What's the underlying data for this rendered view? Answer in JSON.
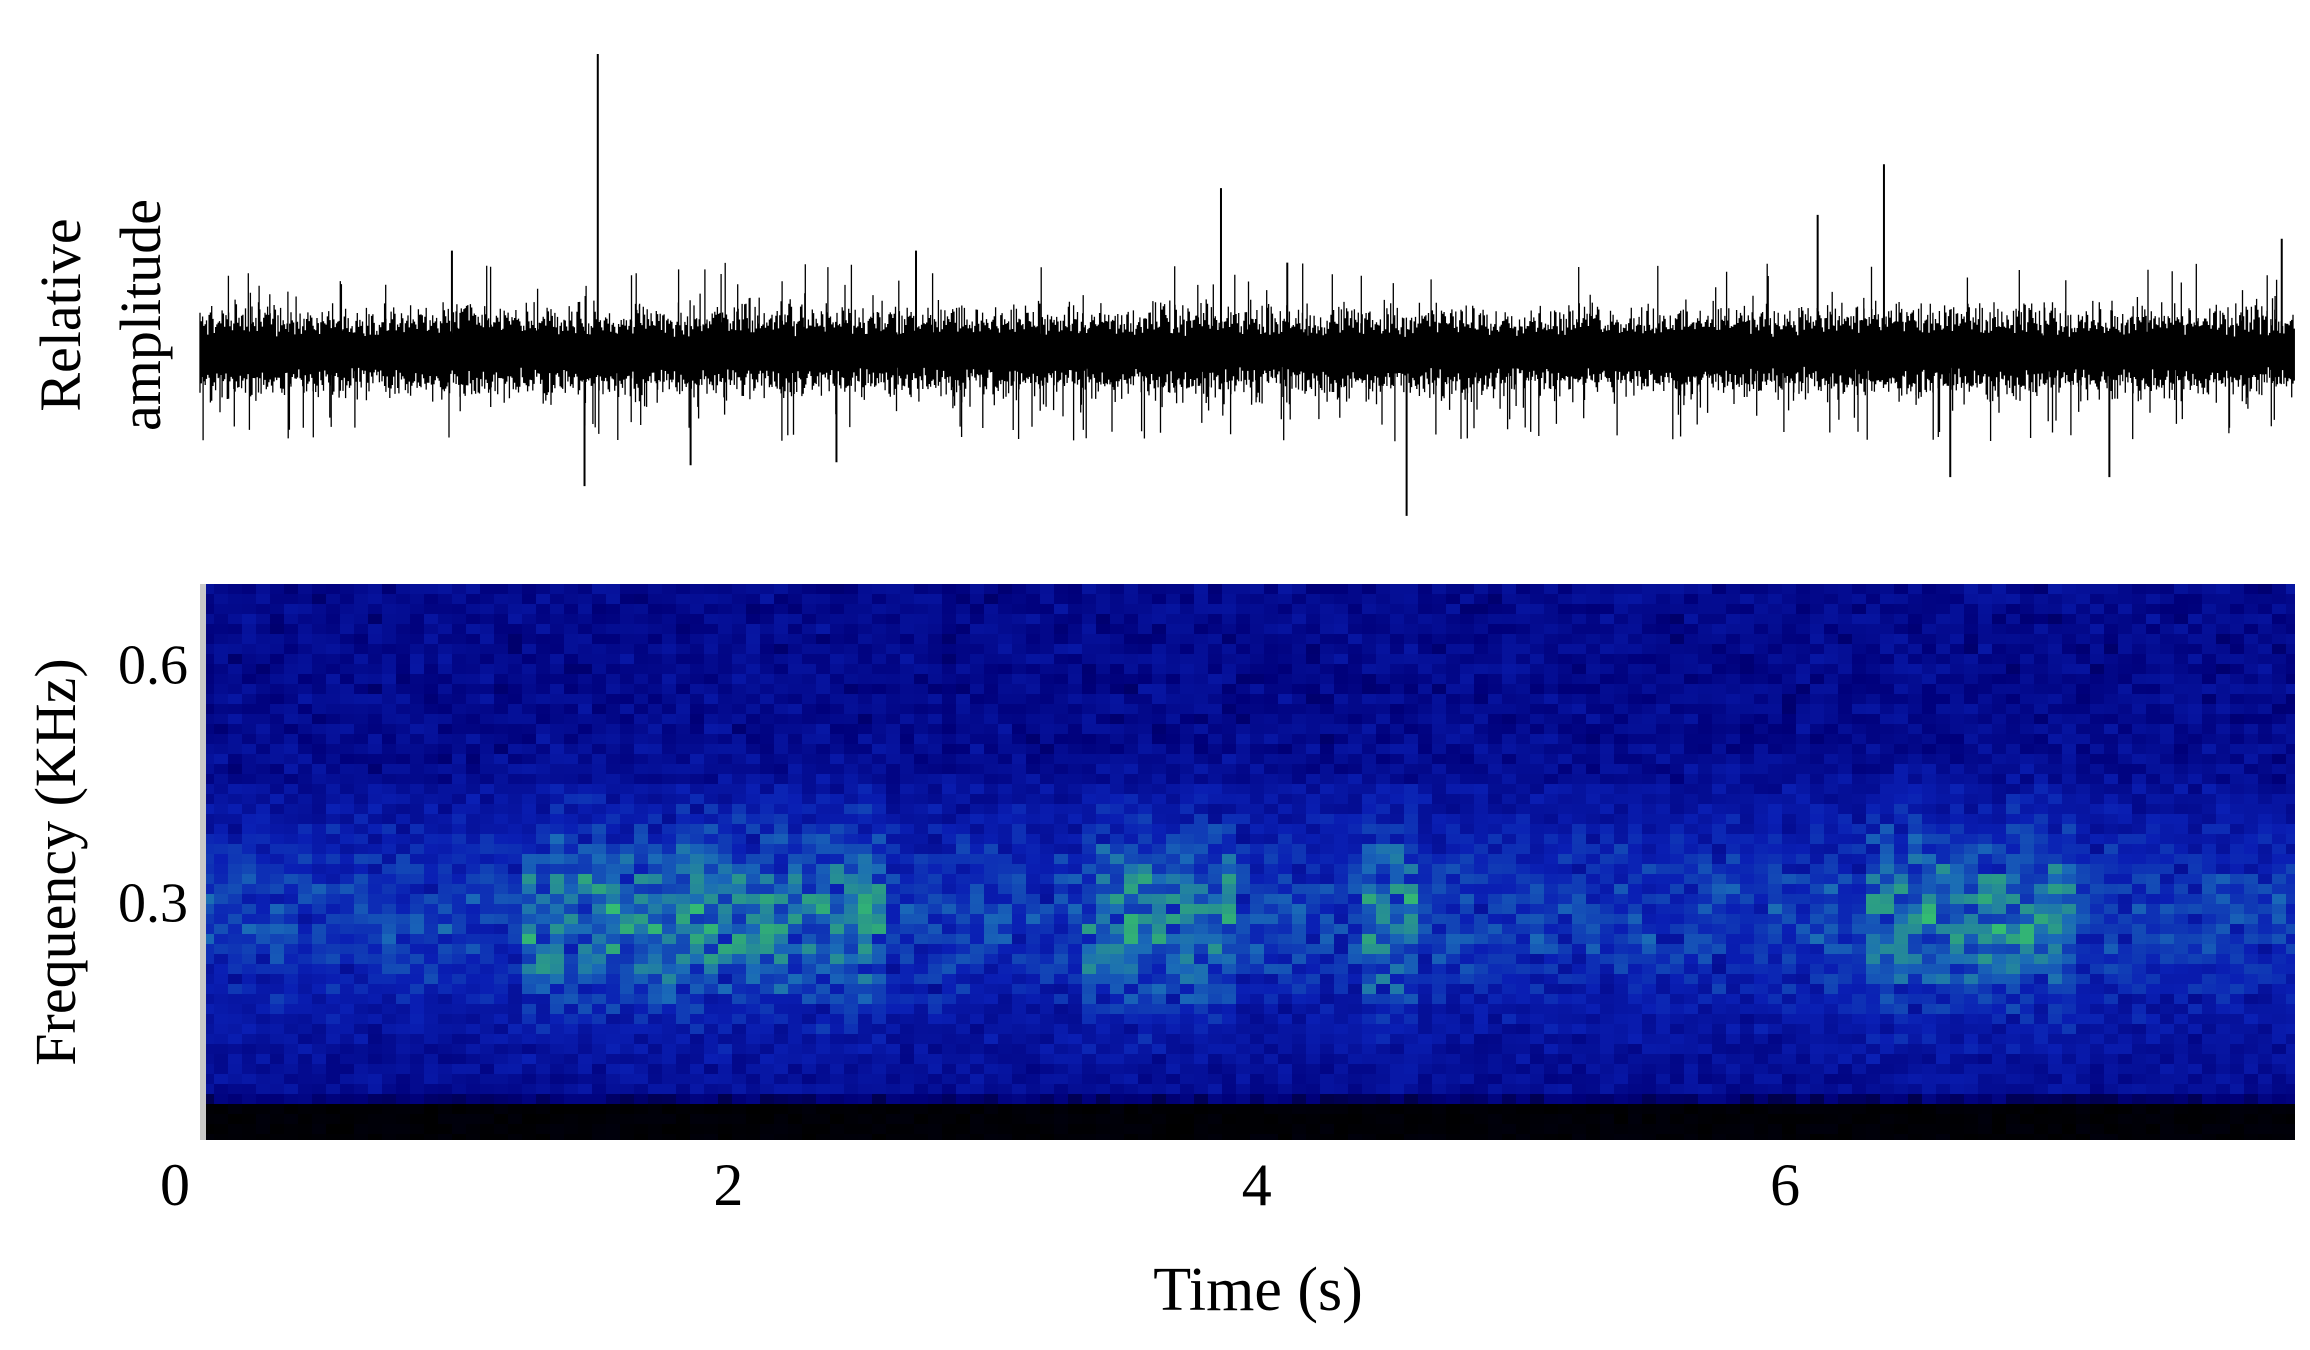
{
  "chart_data": [
    {
      "type": "line",
      "panel": "waveform",
      "ylabel": "Relative\namplitude",
      "ylabel_lines": [
        "Relative",
        "amplitude"
      ],
      "x_range_s": [
        0,
        7.9
      ],
      "axes_visible": false,
      "notable_spikes": [
        {
          "time_s": 1.5,
          "amplitude": 1.0
        },
        {
          "time_s": 1.45,
          "amplitude": -0.45
        },
        {
          "time_s": 4.55,
          "amplitude": -0.55
        },
        {
          "time_s": 3.85,
          "amplitude": 0.55
        },
        {
          "time_s": 6.35,
          "amplitude": 0.63
        },
        {
          "time_s": 6.1,
          "amplitude": 0.46
        },
        {
          "time_s": 7.85,
          "amplitude": 0.38
        },
        {
          "time_s": 0.95,
          "amplitude": 0.34
        },
        {
          "time_s": 1.85,
          "amplitude": -0.38
        },
        {
          "time_s": 2.4,
          "amplitude": -0.37
        },
        {
          "time_s": 6.6,
          "amplitude": -0.42
        },
        {
          "time_s": 7.2,
          "amplitude": -0.42
        },
        {
          "time_s": 4.1,
          "amplitude": 0.3
        },
        {
          "time_s": 2.7,
          "amplitude": 0.34
        }
      ],
      "noise_band_amplitude": 0.15,
      "color": "#000000"
    },
    {
      "type": "heatmap",
      "panel": "spectrogram",
      "xlabel": "Time (s)",
      "ylabel": "Frequency (KHz)",
      "xlim": [
        0,
        7.9
      ],
      "ylim": [
        0,
        0.7
      ],
      "x_ticks": [
        0,
        2,
        4,
        6
      ],
      "x_tick_labels": [
        "0",
        "2",
        "4",
        "6"
      ],
      "y_ticks": [
        0.3,
        0.6
      ],
      "y_tick_labels": [
        "0.3",
        "0.6"
      ],
      "colormap": [
        "#000000",
        "#00007a",
        "#0a1fb4",
        "#1a6ab8",
        "#2fa87a",
        "#3ee860"
      ],
      "energy_band_khz": [
        0.15,
        0.45
      ],
      "energy_peak_khz": 0.28,
      "high_energy_intervals_s": [
        [
          1.2,
          2.6
        ],
        [
          3.3,
          3.9
        ],
        [
          4.4,
          4.6
        ],
        [
          6.3,
          7.1
        ]
      ],
      "low_cutoff_khz": 0.05
    }
  ]
}
